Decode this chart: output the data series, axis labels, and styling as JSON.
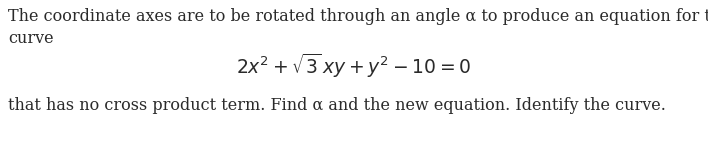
{
  "line1": "The coordinate axes are to be rotated through an angle α to produce an equation for the",
  "line2": "curve",
  "equation": "$2x^2 + \\sqrt{3}\\,xy + y^2 - 10 = 0$",
  "line3": "that has no cross product term. Find α and the new equation. Identify the curve.",
  "background_color": "#ffffff",
  "text_color": "#2a2a2a",
  "fontsize_body": 11.5,
  "fontsize_eq": 13.5,
  "fig_width": 7.08,
  "fig_height": 1.54,
  "dpi": 100
}
